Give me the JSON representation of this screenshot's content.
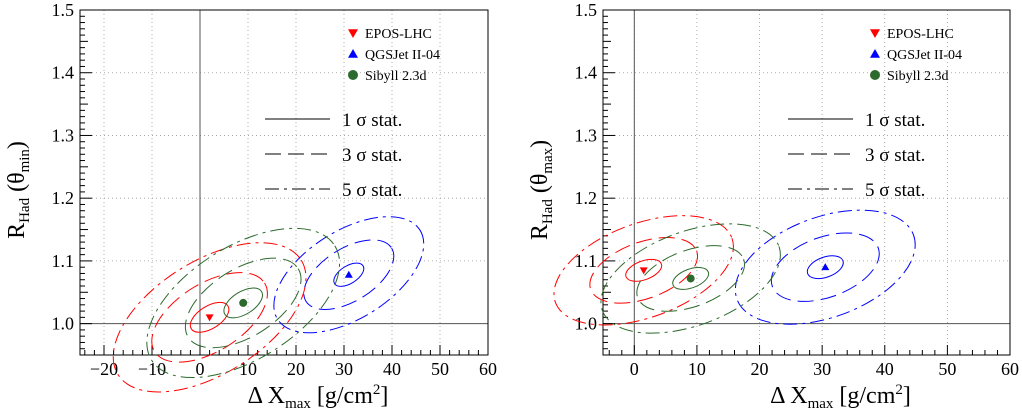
{
  "chart_data": [
    {
      "type": "scatter",
      "title": "",
      "xlabel": {
        "prefix": "Δ X",
        "sub": "max",
        "unit_open": " [g/cm",
        "sup": "2",
        "unit_close": "]"
      },
      "ylabel": {
        "main": "R",
        "sub": "Had",
        "open": " (θ",
        "arg_sub": "min",
        "close": ")"
      },
      "xlim": [
        -25,
        60
      ],
      "ylim": [
        0.95,
        1.5
      ],
      "xticks": [
        -20,
        -10,
        0,
        10,
        20,
        30,
        40,
        50,
        60
      ],
      "xtick_labels": [
        "−20",
        "−10",
        "0",
        "10",
        "20",
        "30",
        "40",
        "50",
        "60"
      ],
      "yticks": [
        1.0,
        1.1,
        1.2,
        1.3,
        1.4,
        1.5
      ],
      "ytick_labels": [
        "1.0",
        "1.1",
        "1.2",
        "1.3",
        "1.4",
        "1.5"
      ],
      "grid": true,
      "reference_lines": {
        "x": 0,
        "y": 1.0
      },
      "legend_position": "top-right",
      "series": [
        {
          "name": "EPOS-LHC",
          "color": "#ff0000",
          "marker": "triangle-down",
          "x": 2,
          "y": 1.01,
          "sigma": {
            "dx": 4.5,
            "dy": 0.018
          },
          "tilt_deg": -32
        },
        {
          "name": "QGSJet II-04",
          "color": "#0000ff",
          "marker": "triangle-up",
          "x": 31,
          "y": 1.078,
          "sigma": {
            "dx": 3.5,
            "dy": 0.014
          },
          "tilt_deg": -32
        },
        {
          "name": "Sibyll 2.3d",
          "color": "#2d6a2d",
          "marker": "circle",
          "x": 9,
          "y": 1.033,
          "sigma": {
            "dx": 4.5,
            "dy": 0.018
          },
          "tilt_deg": -32
        }
      ],
      "contour_legend": [
        {
          "label": "1 σ stat.",
          "style": "solid"
        },
        {
          "label": "3 σ stat.",
          "style": "dashed"
        },
        {
          "label": "5 σ stat.",
          "style": "dashdot"
        }
      ]
    },
    {
      "type": "scatter",
      "title": "",
      "xlabel": {
        "prefix": "Δ X",
        "sub": "max",
        "unit_open": " [g/cm",
        "sup": "2",
        "unit_close": "]"
      },
      "ylabel": {
        "main": "R",
        "sub": "Had",
        "open": " (θ",
        "arg_sub": "max",
        "close": ")"
      },
      "xlim": [
        -5,
        60
      ],
      "ylim": [
        0.95,
        1.5
      ],
      "xticks": [
        0,
        10,
        20,
        30,
        40,
        50,
        60
      ],
      "xtick_labels": [
        "0",
        "10",
        "20",
        "30",
        "40",
        "50",
        "60"
      ],
      "yticks": [
        1.0,
        1.1,
        1.2,
        1.3,
        1.4,
        1.5
      ],
      "ytick_labels": [
        "1.0",
        "1.1",
        "1.2",
        "1.3",
        "1.4",
        "1.5"
      ],
      "grid": true,
      "reference_lines": {
        "x": 0,
        "y": 1.0
      },
      "legend_position": "top-right",
      "series": [
        {
          "name": "EPOS-LHC",
          "color": "#ff0000",
          "marker": "triangle-down",
          "x": 1.5,
          "y": 1.085,
          "sigma": {
            "dx": 3.0,
            "dy": 0.015
          },
          "tilt_deg": -20
        },
        {
          "name": "QGSJet II-04",
          "color": "#0000ff",
          "marker": "triangle-up",
          "x": 30.5,
          "y": 1.09,
          "sigma": {
            "dx": 3.0,
            "dy": 0.016
          },
          "tilt_deg": -20
        },
        {
          "name": "Sibyll 2.3d",
          "color": "#2d6a2d",
          "marker": "circle",
          "x": 9,
          "y": 1.072,
          "sigma": {
            "dx": 3.0,
            "dy": 0.015
          },
          "tilt_deg": -20
        }
      ],
      "contour_legend": [
        {
          "label": "1 σ stat.",
          "style": "solid"
        },
        {
          "label": "3 σ stat.",
          "style": "dashed"
        },
        {
          "label": "5 σ stat.",
          "style": "dashdot"
        }
      ]
    }
  ]
}
